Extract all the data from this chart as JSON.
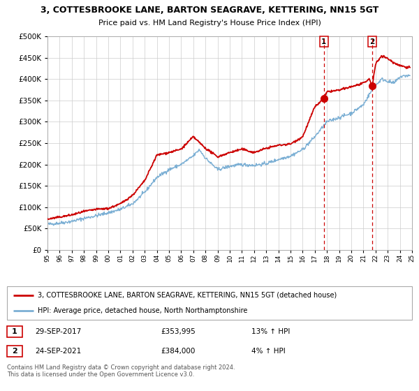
{
  "title": "3, COTTESBROOKE LANE, BARTON SEAGRAVE, KETTERING, NN15 5GT",
  "subtitle": "Price paid vs. HM Land Registry's House Price Index (HPI)",
  "legend_line1": "3, COTTESBROOKE LANE, BARTON SEAGRAVE, KETTERING, NN15 5GT (detached house)",
  "legend_line2": "HPI: Average price, detached house, North Northamptonshire",
  "annotation1_date": "29-SEP-2017",
  "annotation1_price": "£353,995",
  "annotation1_hpi": "13% ↑ HPI",
  "annotation2_date": "24-SEP-2021",
  "annotation2_price": "£384,000",
  "annotation2_hpi": "4% ↑ HPI",
  "footnote": "Contains HM Land Registry data © Crown copyright and database right 2024.\nThis data is licensed under the Open Government Licence v3.0.",
  "red_color": "#cc0000",
  "blue_color": "#7bafd4",
  "vline_color": "#cc0000",
  "point1_x": 2017.75,
  "point1_y": 353995,
  "point2_x": 2021.73,
  "point2_y": 384000,
  "ylim_max": 500000,
  "xlim_min": 1995,
  "xlim_max": 2025,
  "yticks": [
    0,
    50000,
    100000,
    150000,
    200000,
    250000,
    300000,
    350000,
    400000,
    450000,
    500000
  ],
  "hpi_control_years": [
    1995,
    1996,
    1997,
    1998,
    1999,
    2000,
    2001,
    2002,
    2003,
    2004,
    2005,
    2006,
    2007,
    2007.5,
    2008,
    2009,
    2010,
    2011,
    2012,
    2013,
    2014,
    2015,
    2016,
    2017,
    2018,
    2019,
    2020,
    2021,
    2021.5,
    2022,
    2022.5,
    2023,
    2023.5,
    2024,
    2024.5
  ],
  "hpi_control_vals": [
    60000,
    63000,
    67000,
    74000,
    80000,
    87000,
    95000,
    108000,
    135000,
    170000,
    188000,
    200000,
    220000,
    235000,
    215000,
    188000,
    196000,
    200000,
    198000,
    202000,
    212000,
    220000,
    235000,
    265000,
    300000,
    310000,
    320000,
    340000,
    365000,
    385000,
    400000,
    395000,
    390000,
    405000,
    408000
  ],
  "prop_control_years": [
    1995,
    1996,
    1997,
    1998,
    1999,
    2000,
    2001,
    2002,
    2003,
    2004,
    2005,
    2006,
    2007,
    2008,
    2009,
    2010,
    2011,
    2012,
    2013,
    2014,
    2015,
    2016,
    2017,
    2017.75,
    2018,
    2019,
    2020,
    2021,
    2021.5,
    2021.73,
    2022,
    2022.5,
    2023,
    2023.5,
    2024,
    2024.5
  ],
  "prop_control_vals": [
    72000,
    77000,
    82000,
    90000,
    95000,
    97000,
    108000,
    128000,
    162000,
    222000,
    228000,
    236000,
    265000,
    238000,
    218000,
    228000,
    236000,
    228000,
    238000,
    245000,
    248000,
    265000,
    335000,
    353995,
    370000,
    374000,
    382000,
    390000,
    400000,
    384000,
    435000,
    455000,
    448000,
    438000,
    432000,
    428000
  ]
}
